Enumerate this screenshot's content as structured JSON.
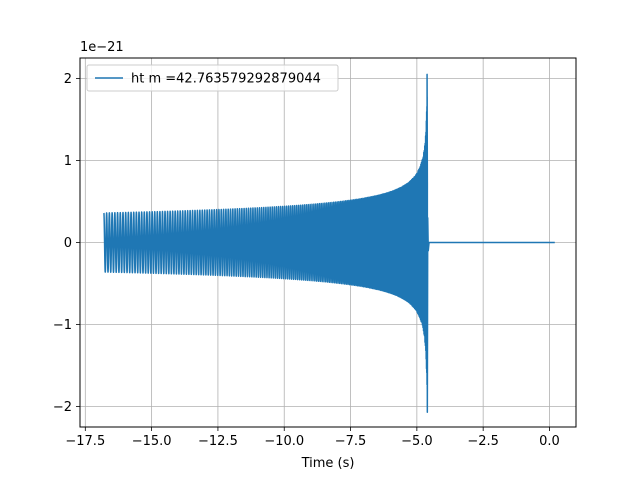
{
  "chart_data": {
    "type": "line",
    "title": "",
    "xlabel": "Time (s)",
    "ylabel": "",
    "y_scale_label": "1e−21",
    "xlim": [
      -17.7,
      1.0
    ],
    "ylim": [
      -2.25,
      2.25
    ],
    "x_ticks": [
      -17.5,
      -15.0,
      -12.5,
      -10.0,
      -7.5,
      -5.0,
      -2.5,
      0.0
    ],
    "x_tick_labels": [
      "−17.5",
      "−15.0",
      "−12.5",
      "−10.0",
      "−7.5",
      "−5.0",
      "−2.5",
      "0.0"
    ],
    "y_ticks": [
      -2,
      -1,
      0,
      1,
      2
    ],
    "y_tick_labels": [
      "−2",
      "−1",
      "0",
      "1",
      "2"
    ],
    "grid": true,
    "legend": "top-left",
    "series": [
      {
        "name": "ht m =42.763579292879044",
        "color": "#1f77b4",
        "signal": {
          "t_start": -16.8,
          "t_merger": -4.6,
          "t_end": 0.2,
          "amplitude_start": 0.36,
          "amplitude_peak": 2.05,
          "amplitude_min_peak": -2.07
        }
      }
    ]
  }
}
